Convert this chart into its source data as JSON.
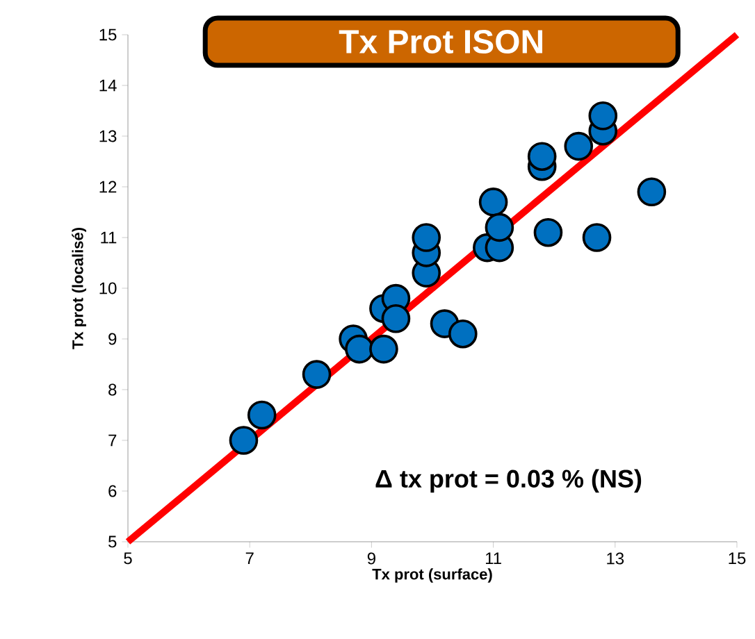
{
  "chart_data": {
    "type": "scatter",
    "title": "Tx Prot ISON",
    "xlabel": "Tx prot (surface)",
    "ylabel": "Tx prot (localisé)",
    "annotations": [
      "Δ tx prot = 0.03 % (NS)"
    ],
    "xlim": [
      5,
      15
    ],
    "ylim": [
      5,
      15
    ],
    "xticks": [
      5,
      7,
      9,
      11,
      13,
      15
    ],
    "yticks": [
      5,
      6,
      7,
      8,
      9,
      10,
      11,
      12,
      13,
      14,
      15
    ],
    "grid": false,
    "series": [
      {
        "type": "line",
        "color": "#ff0000",
        "marker": "none",
        "line_style": "solid",
        "x": [
          5,
          15
        ],
        "values": [
          5,
          15
        ]
      },
      {
        "color": "#0070c0",
        "marker": "circle",
        "x": [
          6.9,
          7.2,
          8.1,
          8.7,
          8.8,
          9.2,
          9.2,
          9.4,
          9.4,
          9.9,
          9.9,
          9.9,
          10.2,
          10.5,
          10.9,
          11.0,
          11.1,
          11.1,
          11.8,
          11.8,
          11.9,
          12.4,
          12.7,
          12.8,
          12.8,
          13.6
        ],
        "values": [
          7.0,
          7.5,
          8.3,
          9.0,
          8.8,
          8.8,
          9.6,
          9.8,
          9.4,
          10.3,
          10.7,
          11.0,
          9.3,
          9.1,
          10.8,
          11.7,
          10.8,
          11.2,
          12.4,
          12.6,
          11.1,
          12.8,
          11.0,
          13.1,
          13.4,
          11.9
        ]
      }
    ]
  }
}
